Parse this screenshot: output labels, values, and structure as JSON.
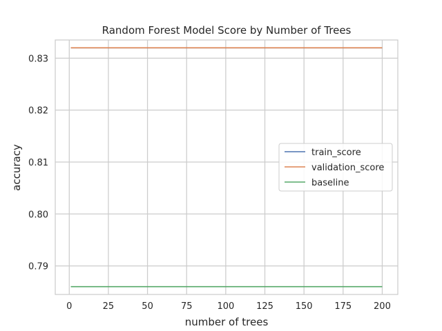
{
  "chart_data": {
    "type": "line",
    "title": "Random Forest Model Score by Number of Trees",
    "xlabel": "number of trees",
    "ylabel": "accuracy",
    "xlim": [
      -8.95,
      209.95
    ],
    "ylim": [
      0.7845,
      0.8335
    ],
    "xticks": [
      0,
      25,
      50,
      75,
      100,
      125,
      150,
      175,
      200
    ],
    "yticks": [
      0.79,
      0.8,
      0.81,
      0.82,
      0.83
    ],
    "ytick_labels": [
      "0.79",
      "0.80",
      "0.81",
      "0.82",
      "0.83"
    ],
    "grid": true,
    "legend_position": "center-right",
    "series": [
      {
        "name": "train_score",
        "color": "#4c72b0",
        "x": [
          1,
          200
        ],
        "y": [
          0.832,
          0.832
        ]
      },
      {
        "name": "validation_score",
        "color": "#dd8452",
        "x": [
          1,
          200
        ],
        "y": [
          0.832,
          0.832
        ]
      },
      {
        "name": "baseline",
        "color": "#55a868",
        "x": [
          1,
          200
        ],
        "y": [
          0.786,
          0.786
        ]
      }
    ]
  }
}
